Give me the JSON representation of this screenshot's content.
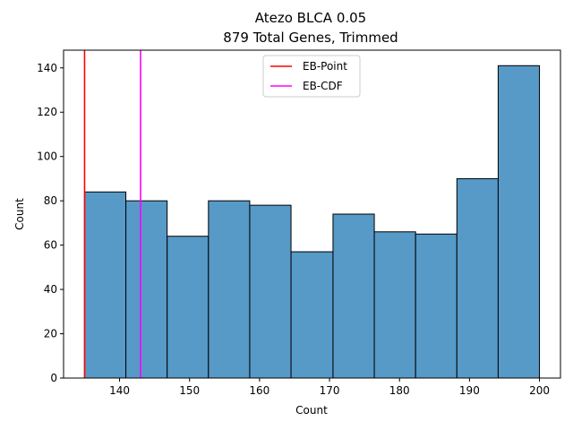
{
  "chart_data": {
    "type": "histogram",
    "title": "Atezo BLCA 0.05",
    "subtitle": "879 Total Genes, Trimmed",
    "xlabel": "Count",
    "ylabel": "Count",
    "xlim": [
      132,
      203
    ],
    "ylim": [
      0,
      148
    ],
    "xticks": [
      140,
      150,
      160,
      170,
      180,
      190,
      200
    ],
    "yticks": [
      0,
      20,
      40,
      60,
      80,
      100,
      120,
      140
    ],
    "bins": [
      {
        "x0": 135.0,
        "x1": 140.9,
        "count": 84
      },
      {
        "x0": 140.9,
        "x1": 146.8,
        "count": 80
      },
      {
        "x0": 146.8,
        "x1": 152.7,
        "count": 64
      },
      {
        "x0": 152.7,
        "x1": 158.6,
        "count": 80
      },
      {
        "x0": 158.6,
        "x1": 164.5,
        "count": 78
      },
      {
        "x0": 164.5,
        "x1": 170.5,
        "count": 57
      },
      {
        "x0": 170.5,
        "x1": 176.4,
        "count": 74
      },
      {
        "x0": 176.4,
        "x1": 182.3,
        "count": 66
      },
      {
        "x0": 182.3,
        "x1": 188.2,
        "count": 65
      },
      {
        "x0": 188.2,
        "x1": 194.1,
        "count": 90
      },
      {
        "x0": 194.1,
        "x1": 200.0,
        "count": 141
      }
    ],
    "bar_color": "#5799c7",
    "vlines": [
      {
        "name": "EB-Point",
        "x": 135.0,
        "color": "#ff0000"
      },
      {
        "name": "EB-CDF",
        "x": 143.0,
        "color": "#ff00ff"
      }
    ],
    "legend": {
      "position": "top-center",
      "entries": [
        "EB-Point",
        "EB-CDF"
      ]
    },
    "grid": false
  }
}
